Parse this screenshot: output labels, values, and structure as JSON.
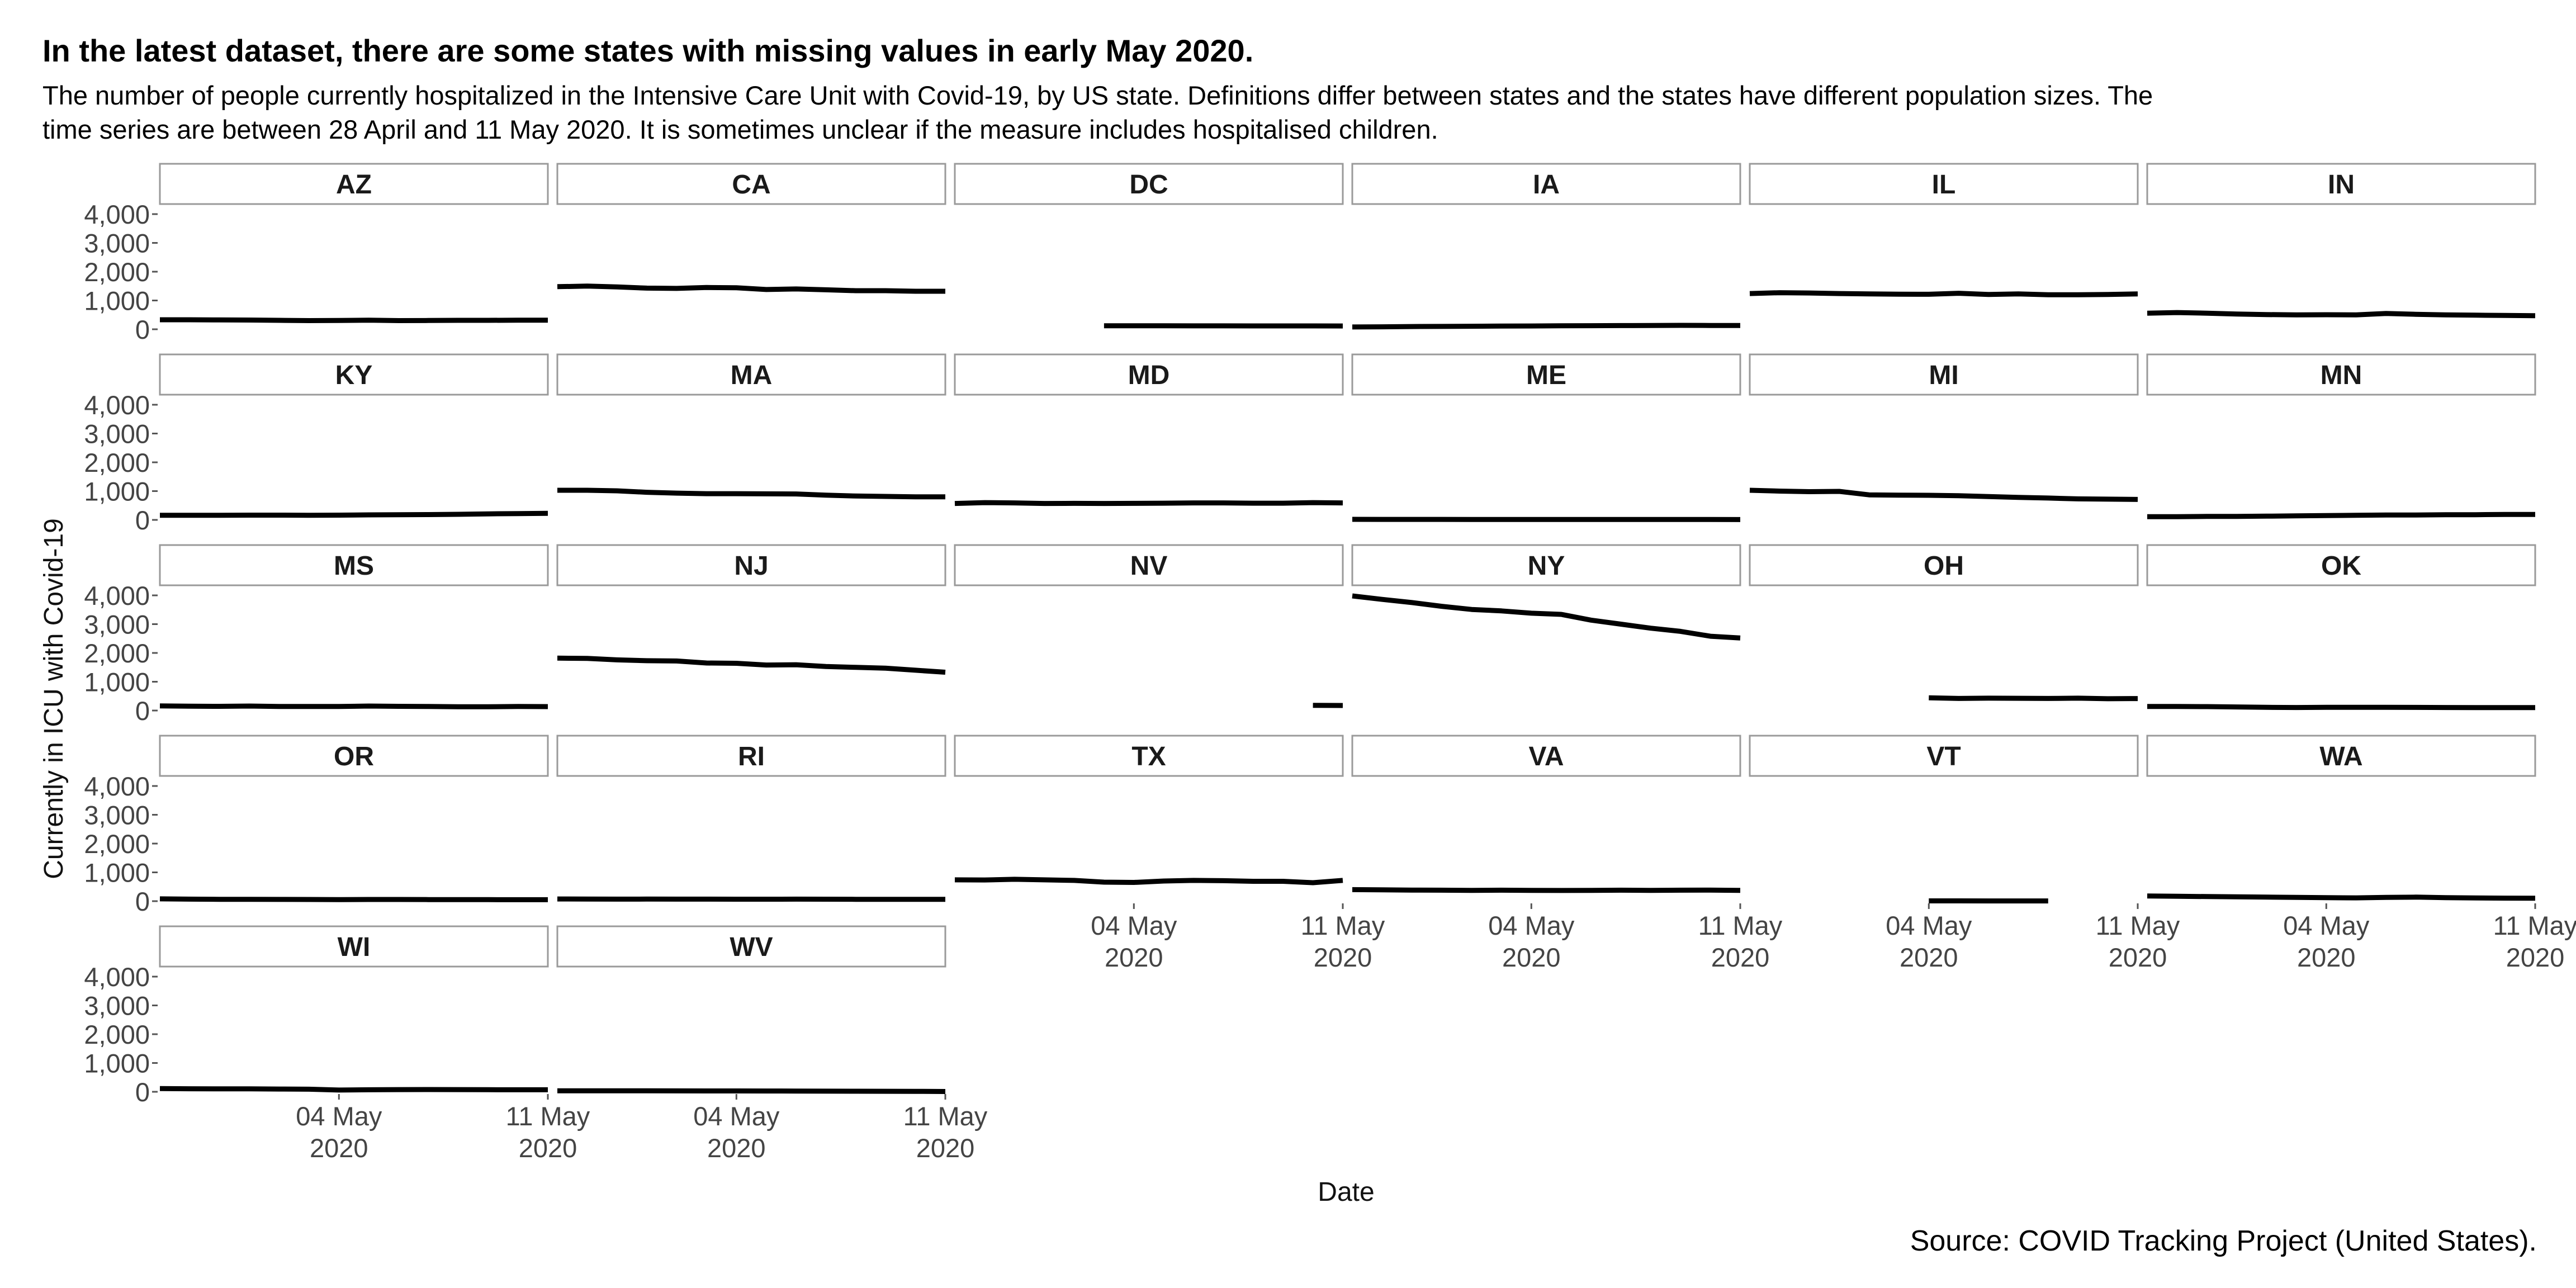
{
  "title": "In the latest dataset, there are some states with missing values in early May 2020.",
  "subtitle": "The number of people currently hospitalized in the Intensive Care Unit with Covid-19, by US state. Definitions differ between states and the states have different population sizes. The time series are between 28 April and 11 May 2020. It is sometimes unclear if the measure includes hospitalised children.",
  "caption": "Source: COVID Tracking Project (United States).",
  "chart_data": {
    "type": "line",
    "layout": "small-multiples",
    "xlabel": "Date",
    "ylabel": "Currently in ICU with Covid-19",
    "x_range": [
      "2020-04-28",
      "2020-05-11"
    ],
    "x_ticks": [
      {
        "date": "2020-05-04",
        "line1": "04 May",
        "line2": "2020"
      },
      {
        "date": "2020-05-11",
        "line1": "11 May",
        "line2": "2020"
      }
    ],
    "ylim": [
      0,
      4000
    ],
    "y_ticks": [
      {
        "value": 0,
        "label": "0"
      },
      {
        "value": 1000,
        "label": "1,000"
      },
      {
        "value": 2000,
        "label": "2,000"
      },
      {
        "value": 3000,
        "label": "3,000"
      },
      {
        "value": 4000,
        "label": "4,000"
      }
    ],
    "x_dates": [
      "2020-04-28",
      "2020-04-29",
      "2020-04-30",
      "2020-05-01",
      "2020-05-02",
      "2020-05-03",
      "2020-05-04",
      "2020-05-05",
      "2020-05-06",
      "2020-05-07",
      "2020-05-08",
      "2020-05-09",
      "2020-05-10",
      "2020-05-11"
    ],
    "series": [
      {
        "name": "AZ",
        "values": [
          330,
          330,
          325,
          320,
          310,
          300,
          305,
          315,
          300,
          305,
          310,
          310,
          315,
          315
        ]
      },
      {
        "name": "CA",
        "values": [
          1480,
          1500,
          1470,
          1430,
          1420,
          1450,
          1440,
          1380,
          1400,
          1370,
          1340,
          1340,
          1320,
          1320
        ]
      },
      {
        "name": "DC",
        "values": [
          null,
          null,
          null,
          null,
          null,
          120,
          120,
          120,
          118,
          118,
          117,
          117,
          116,
          115
        ]
      },
      {
        "name": "IA",
        "values": [
          80,
          85,
          95,
          100,
          105,
          110,
          115,
          120,
          125,
          128,
          130,
          135,
          132,
          130
        ]
      },
      {
        "name": "IL",
        "values": [
          1240,
          1270,
          1260,
          1240,
          1230,
          1220,
          1215,
          1250,
          1210,
          1230,
          1200,
          1200,
          1210,
          1230
        ]
      },
      {
        "name": "IN",
        "values": [
          560,
          580,
          560,
          530,
          510,
          500,
          505,
          500,
          550,
          520,
          500,
          490,
          480,
          470
        ]
      },
      {
        "name": "KY",
        "values": [
          160,
          160,
          162,
          165,
          165,
          160,
          165,
          175,
          180,
          185,
          195,
          210,
          220,
          230
        ]
      },
      {
        "name": "MA",
        "values": [
          1030,
          1030,
          1010,
          960,
          930,
          910,
          910,
          905,
          900,
          860,
          830,
          815,
          800,
          800
        ]
      },
      {
        "name": "MD",
        "values": [
          570,
          600,
          590,
          570,
          575,
          570,
          575,
          580,
          590,
          590,
          580,
          580,
          600,
          590
        ]
      },
      {
        "name": "ME",
        "values": [
          20,
          18,
          18,
          17,
          16,
          16,
          15,
          15,
          15,
          14,
          14,
          13,
          13,
          12
        ]
      },
      {
        "name": "MI",
        "values": [
          1030,
          1000,
          980,
          990,
          870,
          860,
          855,
          840,
          810,
          780,
          760,
          730,
          720,
          710
        ]
      },
      {
        "name": "MN",
        "values": [
          110,
          110,
          120,
          120,
          130,
          140,
          150,
          160,
          170,
          170,
          180,
          180,
          190,
          190
        ]
      },
      {
        "name": "MS",
        "values": [
          160,
          150,
          145,
          155,
          140,
          140,
          140,
          155,
          145,
          140,
          130,
          130,
          140,
          135
        ]
      },
      {
        "name": "NJ",
        "values": [
          1820,
          1810,
          1760,
          1730,
          1720,
          1650,
          1640,
          1580,
          1590,
          1530,
          1500,
          1470,
          1400,
          1330
        ]
      },
      {
        "name": "NV",
        "values": [
          null,
          null,
          null,
          null,
          null,
          null,
          null,
          null,
          null,
          null,
          null,
          null,
          180,
          175
        ]
      },
      {
        "name": "NY",
        "values": [
          3980,
          3860,
          3750,
          3620,
          3510,
          3460,
          3380,
          3340,
          3140,
          3000,
          2860,
          2750,
          2580,
          2520
        ]
      },
      {
        "name": "OH",
        "values": [
          null,
          null,
          null,
          null,
          null,
          null,
          440,
          420,
          430,
          425,
          420,
          430,
          410,
          415
        ]
      },
      {
        "name": "OK",
        "values": [
          140,
          140,
          135,
          125,
          110,
          105,
          110,
          110,
          112,
          108,
          105,
          103,
          100,
          100
        ]
      },
      {
        "name": "OR",
        "values": [
          80,
          70,
          65,
          65,
          60,
          58,
          55,
          58,
          58,
          55,
          55,
          52,
          50,
          50
        ]
      },
      {
        "name": "RI",
        "values": [
          75,
          72,
          70,
          72,
          70,
          70,
          68,
          68,
          70,
          68,
          65,
          65,
          62,
          62
        ]
      },
      {
        "name": "TX",
        "values": [
          740,
          735,
          760,
          740,
          720,
          660,
          650,
          700,
          720,
          710,
          690,
          690,
          640,
          720
        ]
      },
      {
        "name": "VA",
        "values": [
          400,
          395,
          385,
          380,
          375,
          380,
          375,
          370,
          375,
          380,
          375,
          380,
          385,
          375
        ]
      },
      {
        "name": "VT",
        "values": [
          null,
          null,
          null,
          null,
          null,
          null,
          10,
          9,
          8,
          8,
          7,
          null,
          null,
          null
        ]
      },
      {
        "name": "WA",
        "values": [
          180,
          170,
          160,
          150,
          140,
          130,
          120,
          115,
          130,
          140,
          120,
          110,
          105,
          100
        ]
      },
      {
        "name": "WI",
        "values": [
          110,
          105,
          100,
          100,
          95,
          90,
          60,
          70,
          75,
          78,
          75,
          72,
          70,
          70
        ]
      },
      {
        "name": "WV",
        "values": [
          35,
          35,
          34,
          33,
          32,
          30,
          30,
          28,
          25,
          22,
          20,
          18,
          15,
          10
        ]
      }
    ]
  }
}
